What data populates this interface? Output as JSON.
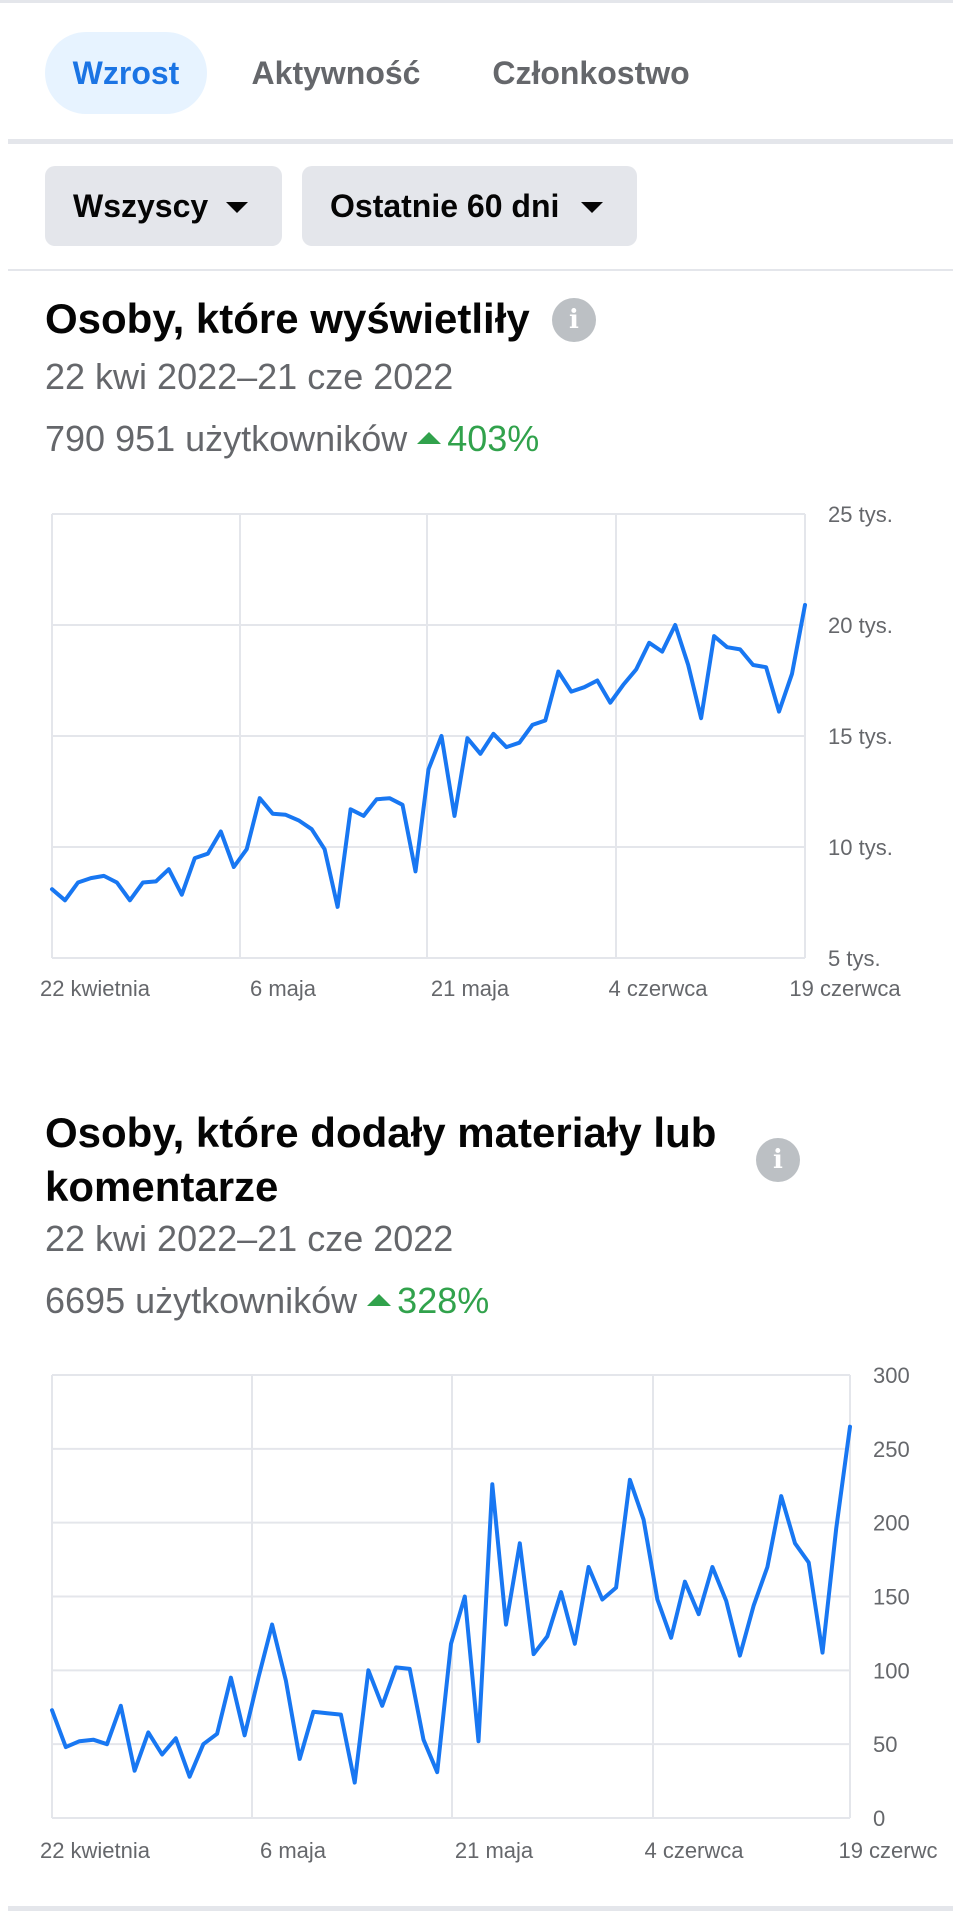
{
  "tabs": [
    {
      "label": "Wzrost",
      "active": true
    },
    {
      "label": "Aktywność",
      "active": false
    },
    {
      "label": "Członkostwo",
      "active": false
    }
  ],
  "filters": {
    "audience": "Wszyscy",
    "range": "Ostatnie 60 dni"
  },
  "colors": {
    "line": "#1877f2",
    "grid": "#e4e6eb",
    "positive": "#31a24c",
    "tab_active_bg": "#e7f3ff",
    "tab_active_text": "#1b74e4"
  },
  "sections": [
    {
      "title": "Osoby, które wyświetliły",
      "date_range": "22 kwi 2022–21 cze 2022",
      "users": "790 951 użytkowników",
      "change": "403%",
      "icon": "info-icon"
    },
    {
      "title_line1": "Osoby, które dodały materiały lub",
      "title_line2": "komentarze",
      "date_range": "22 kwi 2022–21 cze 2022",
      "users": "6695 użytkowników",
      "change": "328%",
      "icon": "info-icon"
    }
  ],
  "chart_data": [
    {
      "type": "line",
      "x_labels": [
        "22 kwietnia",
        "6 maja",
        "21 maja",
        "4 czerwca",
        "19 czerwca"
      ],
      "y_ticks": [
        "5 tys.",
        "10 tys.",
        "15 tys.",
        "20 tys.",
        "25 tys."
      ],
      "ylim": [
        5000,
        25000
      ],
      "grid": true,
      "values": [
        8100,
        7600,
        8400,
        8600,
        8700,
        8400,
        7600,
        8400,
        8450,
        9000,
        7850,
        9500,
        9700,
        10700,
        9100,
        9900,
        12200,
        11500,
        11450,
        11200,
        10800,
        9900,
        7300,
        11700,
        11400,
        12150,
        12200,
        11900,
        8900,
        13500,
        15000,
        11400,
        14900,
        14200,
        15100,
        14500,
        14700,
        15500,
        15700,
        17900,
        17000,
        17200,
        17500,
        16500,
        17300,
        18000,
        19200,
        18800,
        20000,
        18200,
        15800,
        19500,
        19000,
        18900,
        18200,
        18100,
        16100,
        17800,
        20900
      ]
    },
    {
      "type": "line",
      "x_labels": [
        "22 kwietnia",
        "6 maja",
        "21 maja",
        "4 czerwca",
        "19 czerwc"
      ],
      "y_ticks": [
        "0",
        "50",
        "100",
        "150",
        "200",
        "250",
        "300"
      ],
      "ylim": [
        0,
        300
      ],
      "grid": true,
      "values": [
        73,
        48,
        52,
        53,
        50,
        76,
        32,
        58,
        43,
        54,
        28,
        50,
        57,
        95,
        56,
        95,
        131,
        93,
        40,
        72,
        71,
        70,
        24,
        100,
        76,
        102,
        101,
        53,
        31,
        118,
        150,
        52,
        226,
        131,
        186,
        111,
        123,
        153,
        118,
        170,
        148,
        156,
        229,
        202,
        148,
        122,
        160,
        138,
        170,
        147,
        110,
        144,
        170,
        218,
        186,
        173,
        112,
        196,
        265
      ]
    }
  ]
}
